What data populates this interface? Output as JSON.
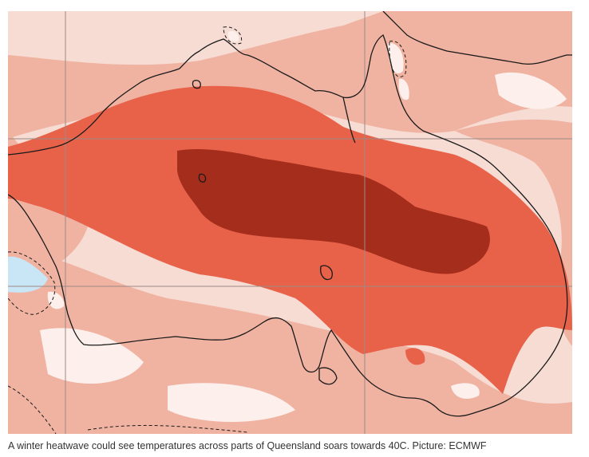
{
  "figure": {
    "caption": "A winter heatwave could see temperatures across parts of Queensland soars towards 40C. Picture: ECMWF"
  },
  "map": {
    "colors": {
      "background": "#f6dcd3",
      "light_anomaly": "#f0b3a2",
      "medium_anomaly": "#e8624a",
      "strong_anomaly": "#a52d1c",
      "cool_anomaly": "#c8e6f5",
      "near_zero": "#fdf0ec",
      "coastline": "#1a1a1a",
      "grid": "#9c8a86"
    },
    "features": [
      "australia-coastline",
      "new-guinea-coastline",
      "tasmania",
      "gridlines"
    ]
  }
}
